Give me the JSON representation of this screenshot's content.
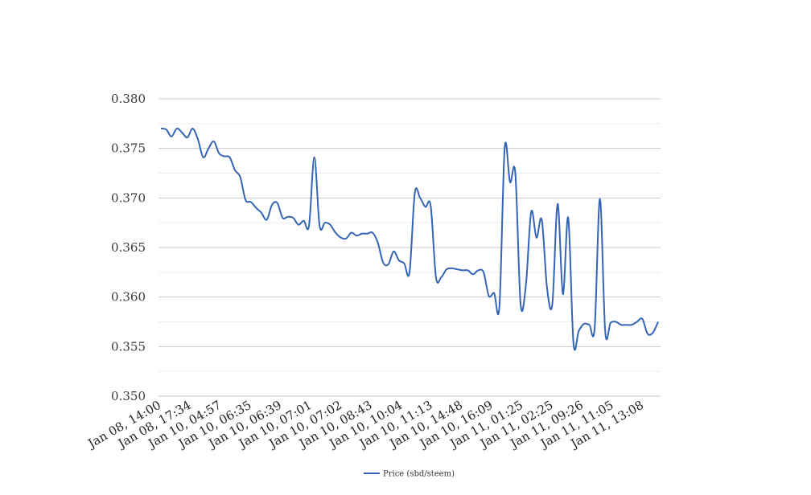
{
  "chart_data": {
    "type": "line",
    "title": "",
    "xlabel": "",
    "ylabel": "",
    "ylim": [
      0.35,
      0.38
    ],
    "yticks": [
      "0.350",
      "0.355",
      "0.360",
      "0.365",
      "0.370",
      "0.375",
      "0.380"
    ],
    "xtick_labels": [
      "Jan 08, 14:00",
      "Jan 08, 17:34",
      "Jan 10, 04:57",
      "Jan 10, 06:35",
      "Jan 10, 06:39",
      "Jan 10, 07:01",
      "Jan 10, 07:02",
      "Jan 10, 08:43",
      "Jan 10, 10:04",
      "Jan 10, 11:13",
      "Jan 10, 14:48",
      "Jan 10, 16:09",
      "Jan 11, 01:25",
      "Jan 11, 02:25",
      "Jan 11, 09:26",
      "Jan 11, 11:05",
      "Jan 11, 13:08"
    ],
    "grid": true,
    "legend_position": "bottom-center",
    "series": [
      {
        "name": "Price (sbd/steem)",
        "color": "#3465b4",
        "values": [
          0.377,
          0.3769,
          0.3762,
          0.377,
          0.3766,
          0.3761,
          0.377,
          0.3759,
          0.3741,
          0.375,
          0.3757,
          0.3745,
          0.3742,
          0.3741,
          0.3728,
          0.3721,
          0.3698,
          0.3696,
          0.369,
          0.3685,
          0.3678,
          0.3693,
          0.3695,
          0.368,
          0.3681,
          0.368,
          0.3673,
          0.3677,
          0.3672,
          0.3741,
          0.3672,
          0.3675,
          0.3673,
          0.3665,
          0.366,
          0.3659,
          0.3665,
          0.3662,
          0.3664,
          0.3664,
          0.3665,
          0.3655,
          0.3635,
          0.3633,
          0.3646,
          0.3637,
          0.3634,
          0.3625,
          0.3705,
          0.37,
          0.3691,
          0.3692,
          0.362,
          0.362,
          0.3628,
          0.3629,
          0.3628,
          0.3627,
          0.3627,
          0.3623,
          0.3627,
          0.3625,
          0.3601,
          0.3604,
          0.3591,
          0.3751,
          0.3716,
          0.3725,
          0.3593,
          0.3612,
          0.3686,
          0.366,
          0.3678,
          0.3609,
          0.3593,
          0.3694,
          0.3603,
          0.368,
          0.3553,
          0.3566,
          0.3573,
          0.3572,
          0.3569,
          0.3699,
          0.3565,
          0.3574,
          0.3575,
          0.3572,
          0.3572,
          0.3572,
          0.3575,
          0.3578,
          0.3563,
          0.3564,
          0.3575
        ]
      }
    ]
  }
}
